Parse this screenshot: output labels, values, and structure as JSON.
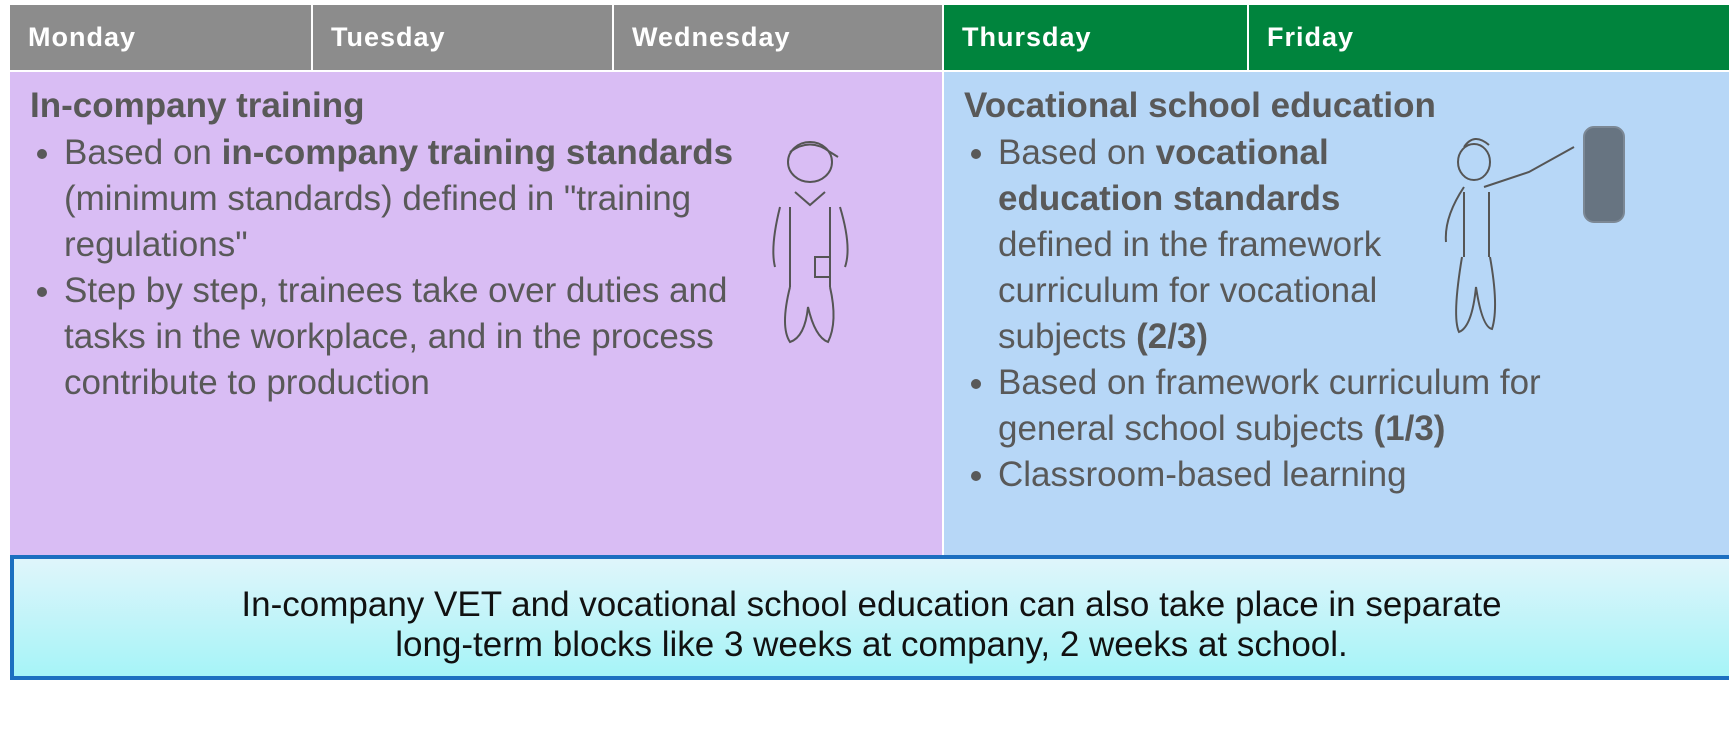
{
  "header": {
    "days": [
      "Monday",
      "Tuesday",
      "Wednesday",
      "Thursday",
      "Friday"
    ]
  },
  "left": {
    "title": "In-company training",
    "bullets": [
      [
        {
          "text": "Based on "
        },
        {
          "text": "in-company training standards",
          "bold": true
        },
        {
          "text": " (minimum standards) defined in \"training regulations\""
        }
      ],
      [
        {
          "text": "Step by step, trainees take over duties and tasks in the workplace, and in the process contribute to production"
        }
      ]
    ]
  },
  "right": {
    "title": "Vocational school education",
    "bullets": [
      [
        {
          "text": "Based on "
        },
        {
          "text": "vocational education standards",
          "bold": true
        },
        {
          "text": " defined in the framework curriculum for vocational subjects "
        },
        {
          "text": "(2/3)",
          "bold": true
        }
      ],
      [
        {
          "text": "Based on framework curriculum for general school subjects "
        },
        {
          "text": "(1/3)",
          "bold": true
        }
      ],
      [
        {
          "text": "Classroom-based learning"
        }
      ]
    ]
  },
  "footer": {
    "lines": [
      "In-company VET and vocational school education can also take place in separate",
      "long-term blocks like 3 weeks at company, 2 weeks at school."
    ]
  }
}
